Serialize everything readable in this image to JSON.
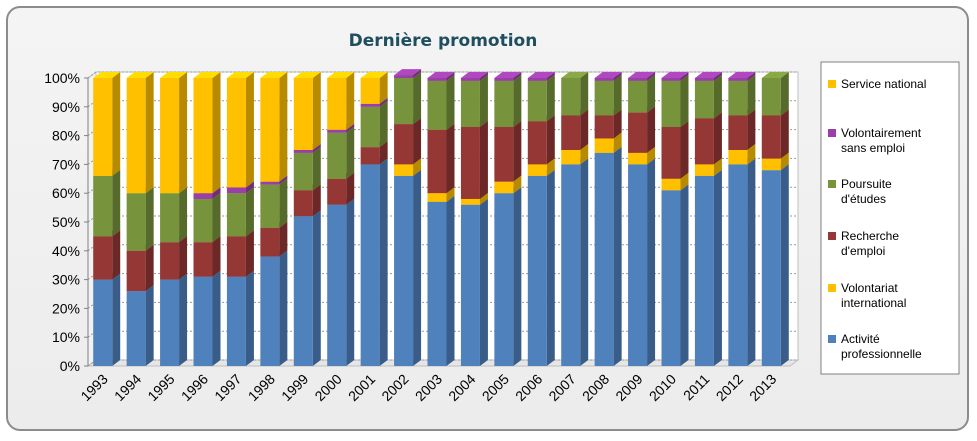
{
  "chart_data": {
    "type": "bar",
    "stacked": true,
    "percent": true,
    "style_3d": true,
    "title": "Dernière promotion",
    "xlabel": "",
    "ylabel": "",
    "ylim": [
      0,
      100
    ],
    "yticks": [
      "0%",
      "10%",
      "20%",
      "30%",
      "40%",
      "50%",
      "60%",
      "70%",
      "80%",
      "90%",
      "100%"
    ],
    "grid": true,
    "legend_position": "right",
    "categories": [
      "1993",
      "1994",
      "1995",
      "1996",
      "1997",
      "1998",
      "1999",
      "2000",
      "2001",
      "2002",
      "2003",
      "2004",
      "2005",
      "2006",
      "2007",
      "2008",
      "2009",
      "2010",
      "2011",
      "2012",
      "2013"
    ],
    "series": [
      {
        "name": "Activité professionnelle",
        "color": "#4f81bd",
        "values": [
          30,
          26,
          30,
          31,
          31,
          38,
          52,
          56,
          70,
          66,
          57,
          56,
          60,
          66,
          70,
          74,
          70,
          61,
          66,
          70,
          68
        ]
      },
      {
        "name": "Volontariat international",
        "color": "#ffc000",
        "values": [
          0,
          0,
          0,
          0,
          0,
          0,
          0,
          0,
          0,
          4,
          3,
          2,
          4,
          4,
          5,
          5,
          4,
          4,
          4,
          5,
          4
        ]
      },
      {
        "name": "Recherche d'emploi",
        "color": "#953735",
        "values": [
          15,
          14,
          13,
          12,
          14,
          10,
          9,
          9,
          6,
          14,
          22,
          25,
          19,
          15,
          12,
          8,
          14,
          18,
          16,
          12,
          15
        ]
      },
      {
        "name": "Poursuite d'études",
        "color": "#77933c",
        "values": [
          21,
          20,
          17,
          15,
          15,
          15,
          13,
          16,
          14,
          16,
          17,
          16,
          16,
          14,
          13,
          12,
          11,
          16,
          13,
          12,
          13
        ]
      },
      {
        "name": "Volontairement sans emploi",
        "color": "#9b3fa8",
        "values": [
          0,
          0,
          0,
          2,
          2,
          1,
          1,
          1,
          1,
          1,
          1,
          1,
          1,
          1,
          0,
          1,
          1,
          1,
          1,
          1,
          0
        ]
      },
      {
        "name": "Service national",
        "color": "#ffc000",
        "values": [
          34,
          40,
          40,
          40,
          38,
          36,
          25,
          18,
          9,
          0,
          0,
          0,
          0,
          0,
          0,
          0,
          0,
          0,
          0,
          0,
          0
        ]
      }
    ]
  },
  "legend_order": [
    {
      "lines": [
        "Service national"
      ],
      "color": "#ffc000"
    },
    {
      "lines": [
        "Volontairement",
        "sans emploi"
      ],
      "color": "#9b3fa8"
    },
    {
      "lines": [
        "Poursuite",
        "d'études"
      ],
      "color": "#77933c"
    },
    {
      "lines": [
        "Recherche",
        "d'emploi"
      ],
      "color": "#953735"
    },
    {
      "lines": [
        "Volontariat",
        "international"
      ],
      "color": "#ffc000"
    },
    {
      "lines": [
        "Activité",
        "professionnelle"
      ],
      "color": "#4f81bd"
    }
  ]
}
